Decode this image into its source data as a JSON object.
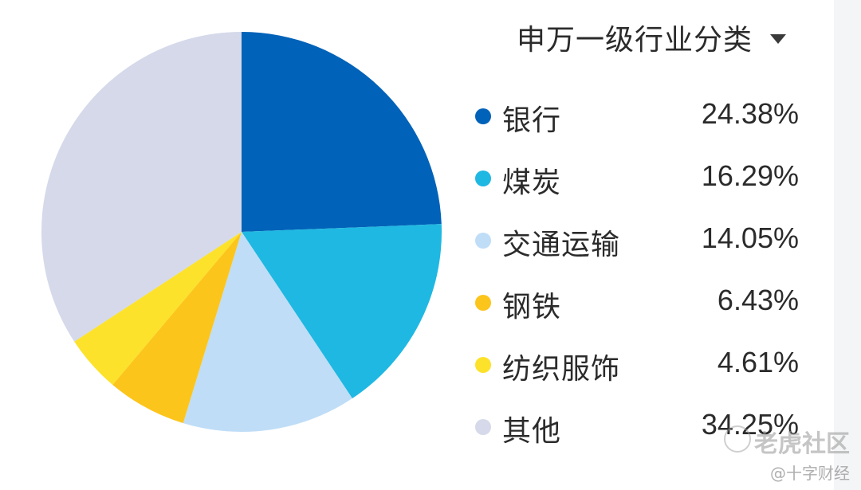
{
  "selector": {
    "label": "申万一级行业分类",
    "icon": "chevron-down-icon"
  },
  "chart_data": {
    "type": "pie",
    "title": "",
    "categories": [
      "银行",
      "煤炭",
      "交通运输",
      "钢铁",
      "纺织服饰",
      "其他"
    ],
    "values": [
      24.38,
      16.29,
      14.05,
      6.43,
      4.61,
      34.25
    ],
    "value_labels": [
      "24.38%",
      "16.29%",
      "14.05%",
      "6.43%",
      "4.61%",
      "34.25%"
    ],
    "colors": [
      "#0062b8",
      "#1fb8e2",
      "#bfddf7",
      "#fcc51c",
      "#fde22b",
      "#d5d9ea"
    ],
    "legend_position": "right"
  },
  "watermark": {
    "brand": "老虎社区",
    "sub": "@十字财经"
  }
}
